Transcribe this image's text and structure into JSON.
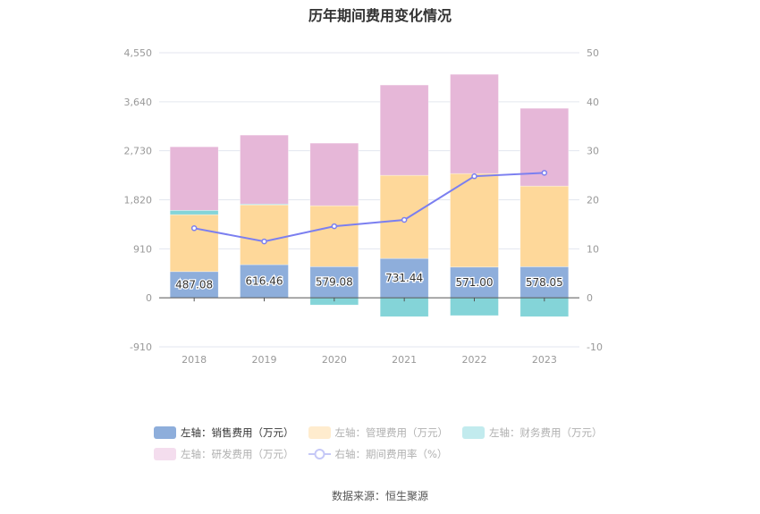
{
  "chart_data": {
    "type": "bar",
    "title": "历年期间费用变化情况",
    "categories": [
      "2018",
      "2019",
      "2020",
      "2021",
      "2022",
      "2023"
    ],
    "left_axis": {
      "ylim": [
        -910,
        4550
      ],
      "ticks": [
        "4,550",
        "3,640",
        "2,730",
        "1,820",
        "910",
        "0",
        "-910"
      ],
      "tick_values": [
        4550,
        3640,
        2730,
        1820,
        910,
        0,
        -910
      ]
    },
    "right_axis": {
      "ylim": [
        -10,
        50
      ],
      "ticks": [
        "50",
        "40",
        "30",
        "20",
        "10",
        "0",
        "-10"
      ],
      "tick_values": [
        50,
        40,
        30,
        20,
        10,
        0,
        -10
      ]
    },
    "grid": true,
    "stacked": true,
    "series": [
      {
        "name": "左轴：销售费用（万元）",
        "type": "bar",
        "axis": "left",
        "color": "#8eaedb",
        "values": [
          487.08,
          616.46,
          579.08,
          731.44,
          571.0,
          578.05
        ],
        "labels": [
          "487.08",
          "616.46",
          "579.08",
          "731.44",
          "571.00",
          "578.05"
        ],
        "legend_active": true
      },
      {
        "name": "左轴：管理费用（万元）",
        "type": "bar",
        "axis": "left",
        "color": "#fed89a",
        "values": [
          1057,
          1110,
          1131,
          1543,
          1736,
          1497
        ],
        "legend_active": false
      },
      {
        "name": "左轴：财务费用（万元）",
        "type": "bar",
        "axis": "left",
        "color": "#84d4d8",
        "values": [
          80,
          15,
          -133,
          -350,
          -330,
          -350
        ],
        "legend_active": false
      },
      {
        "name": "左轴：研发费用（万元）",
        "type": "bar",
        "axis": "left",
        "color": "#e6b7d8",
        "values": [
          1180,
          1280,
          1162,
          1677,
          1843,
          1444
        ],
        "legend_active": false
      },
      {
        "name": "右轴：期间费用率（%）",
        "type": "line",
        "axis": "right",
        "color": "#7b7ff0",
        "values": [
          14.2,
          11.5,
          14.6,
          15.9,
          24.8,
          25.5
        ],
        "legend_active": false
      }
    ],
    "legend_position": "bottom",
    "legend_faded_colors": {
      "s1": "#ffecce",
      "s2": "#c2ebee",
      "s3": "#f4ddee",
      "s4": "#c5c8f7"
    }
  },
  "source": "数据来源：恒生聚源"
}
